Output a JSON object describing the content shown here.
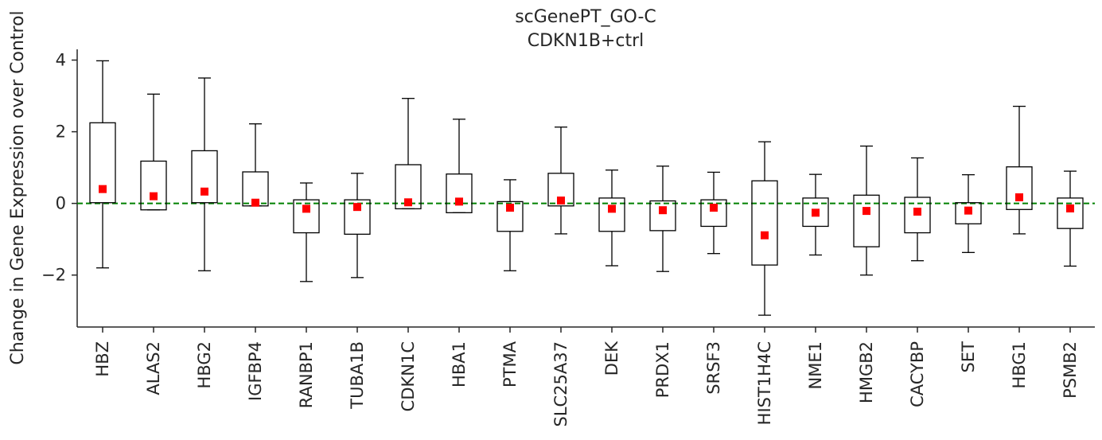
{
  "chart_data": {
    "type": "box",
    "title": "scGenePT_GO-C",
    "subtitle": "CDKN1B+ctrl",
    "xlabel": "",
    "ylabel": "Change in Gene Expression over Control",
    "ylim": [
      -3.45,
      4.3
    ],
    "yticks": [
      -2,
      0,
      2,
      4
    ],
    "reference_line": {
      "y": 0,
      "color": "#008000",
      "style": "dashed"
    },
    "colors": {
      "box": "#000000",
      "mean_marker": "#ff0000",
      "zero_line": "#008000",
      "axis": "#262626"
    },
    "grid": false,
    "legend": "none",
    "categories": [
      "HBZ",
      "ALAS2",
      "HBG2",
      "IGFBP4",
      "RANBP1",
      "TUBA1B",
      "CDKN1C",
      "HBA1",
      "PTMA",
      "SLC25A37",
      "DEK",
      "PRDX1",
      "SRSF3",
      "HIST1H4C",
      "NME1",
      "HMGB2",
      "CACYBP",
      "SET",
      "HBG1",
      "PSMB2"
    ],
    "boxes": [
      {
        "whislo": -1.8,
        "q1": 0.02,
        "q3": 2.25,
        "whishi": 3.98,
        "mean": 0.4
      },
      {
        "whislo": -0.18,
        "q1": -0.18,
        "q3": 1.18,
        "whishi": 3.05,
        "mean": 0.2
      },
      {
        "whislo": -1.88,
        "q1": 0.02,
        "q3": 1.47,
        "whishi": 3.5,
        "mean": 0.33
      },
      {
        "whislo": -0.07,
        "q1": -0.07,
        "q3": 0.88,
        "whishi": 2.22,
        "mean": 0.02
      },
      {
        "whislo": -2.18,
        "q1": -0.82,
        "q3": 0.1,
        "whishi": 0.57,
        "mean": -0.15
      },
      {
        "whislo": -2.07,
        "q1": -0.86,
        "q3": 0.1,
        "whishi": 0.84,
        "mean": -0.1
      },
      {
        "whislo": -0.15,
        "q1": -0.15,
        "q3": 1.08,
        "whishi": 2.93,
        "mean": 0.03
      },
      {
        "whislo": -0.26,
        "q1": -0.26,
        "q3": 0.82,
        "whishi": 2.35,
        "mean": 0.05
      },
      {
        "whislo": -1.88,
        "q1": -0.78,
        "q3": 0.05,
        "whishi": 0.66,
        "mean": -0.12
      },
      {
        "whislo": -0.85,
        "q1": -0.07,
        "q3": 0.84,
        "whishi": 2.13,
        "mean": 0.08
      },
      {
        "whislo": -1.74,
        "q1": -0.78,
        "q3": 0.15,
        "whishi": 0.93,
        "mean": -0.15
      },
      {
        "whislo": -1.9,
        "q1": -0.76,
        "q3": 0.07,
        "whishi": 1.04,
        "mean": -0.19
      },
      {
        "whislo": -1.4,
        "q1": -0.64,
        "q3": 0.1,
        "whishi": 0.87,
        "mean": -0.12
      },
      {
        "whislo": -3.12,
        "q1": -1.72,
        "q3": 0.63,
        "whishi": 1.72,
        "mean": -0.89
      },
      {
        "whislo": -1.44,
        "q1": -0.64,
        "q3": 0.15,
        "whishi": 0.81,
        "mean": -0.26
      },
      {
        "whislo": -2.0,
        "q1": -1.21,
        "q3": 0.23,
        "whishi": 1.6,
        "mean": -0.21
      },
      {
        "whislo": -1.6,
        "q1": -0.82,
        "q3": 0.17,
        "whishi": 1.27,
        "mean": -0.23
      },
      {
        "whislo": -1.37,
        "q1": -0.57,
        "q3": 0.02,
        "whishi": 0.8,
        "mean": -0.2
      },
      {
        "whislo": -0.85,
        "q1": -0.17,
        "q3": 1.02,
        "whishi": 2.71,
        "mean": 0.17
      },
      {
        "whislo": -1.75,
        "q1": -0.7,
        "q3": 0.15,
        "whishi": 0.9,
        "mean": -0.14
      }
    ]
  }
}
